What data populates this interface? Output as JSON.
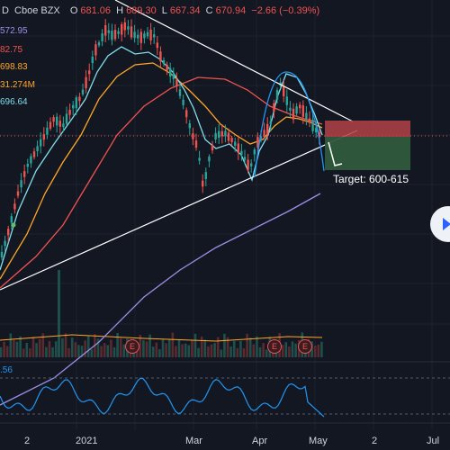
{
  "header": {
    "prefix": "D",
    "exchange": "Cboe BZX",
    "o_label": "O",
    "o_value": "681.06",
    "h_label": "H",
    "h_value": "689.30",
    "l_label": "L",
    "l_value": "667.34",
    "c_label": "C",
    "c_value": "670.94",
    "change": "−2.66 (−0.39%)"
  },
  "indicator_values": [
    {
      "text": "572.95",
      "color": "#9c8fe6"
    },
    {
      "text": "82.75",
      "color": "#ef5350"
    },
    {
      "text": "698.83",
      "color": "#ffa726"
    },
    {
      "text": "31.274M",
      "color": "#ffa726"
    },
    {
      "text": "696.64",
      "color": "#80deea"
    }
  ],
  "rsi_value": ".56",
  "annotation": {
    "target": "Target: 600-615"
  },
  "earnings_label": "E",
  "x_axis": [
    "2",
    "2021",
    "Mar",
    "Apr",
    "May",
    "2",
    "Jul"
  ],
  "chart_data": {
    "type": "candlestick",
    "symbol_exchange": "Cboe BZX",
    "ohlc_last": {
      "open": 681.06,
      "high": 689.3,
      "low": 667.34,
      "close": 670.94,
      "change": -2.66,
      "change_pct": -0.39
    },
    "x_ticks": [
      "2",
      "2021",
      "Mar",
      "Apr",
      "May",
      "2",
      "Jul"
    ],
    "price_levels_labeled": [
      572.95,
      82.75,
      698.83,
      696.64
    ],
    "volume_labeled": "31.274M",
    "rsi_labeled": ".56",
    "target_range": [
      600,
      615
    ],
    "colors": {
      "up": "#26a69a",
      "down": "#ef5350",
      "background": "#131722",
      "ma_fast": "#80deea",
      "ma_mid": "#ffa726",
      "ma_slow": "#ef5350",
      "ma_long": "#9c8fe6",
      "rsi": "#2196f3",
      "projection": "#2196f3"
    }
  }
}
